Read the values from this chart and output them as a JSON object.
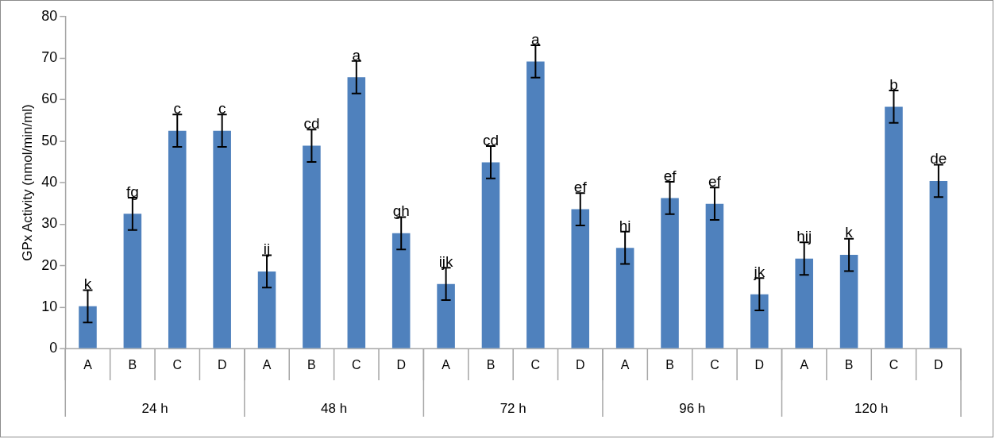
{
  "chart_data": {
    "type": "bar",
    "ylabel": "GPx Activity (nmol/min/ml)",
    "categories": [
      "A",
      "B",
      "C",
      "D",
      "A",
      "B",
      "C",
      "D",
      "A",
      "B",
      "C",
      "D",
      "A",
      "B",
      "C",
      "D",
      "A",
      "B",
      "C",
      "D"
    ],
    "values": [
      10.2,
      32.5,
      52.5,
      52.5,
      18.6,
      48.9,
      65.4,
      27.8,
      15.6,
      44.9,
      69.2,
      33.6,
      24.3,
      36.3,
      34.9,
      13.1,
      21.7,
      22.6,
      58.3,
      40.4
    ],
    "errors": [
      3.9,
      3.9,
      3.9,
      3.9,
      3.9,
      3.9,
      3.9,
      3.9,
      3.9,
      3.9,
      3.9,
      3.9,
      3.9,
      3.9,
      3.9,
      3.9,
      3.9,
      3.9,
      3.9,
      3.9
    ],
    "value_labels": [
      "k",
      "fg",
      "c",
      "c",
      "ij",
      "cd",
      "a",
      "gh",
      "ijk",
      "cd",
      "a",
      "ef",
      "hi",
      "ef",
      "ef",
      "jk",
      "hij",
      "k",
      "b",
      "de"
    ],
    "annotations": [
      "24 h",
      "48 h",
      "72 h",
      "96 h",
      "120 h"
    ],
    "color": "#4f81bd",
    "ylim": [
      0,
      80
    ],
    "yticks": [
      0,
      10,
      20,
      30,
      40,
      50,
      60,
      70,
      80
    ]
  }
}
